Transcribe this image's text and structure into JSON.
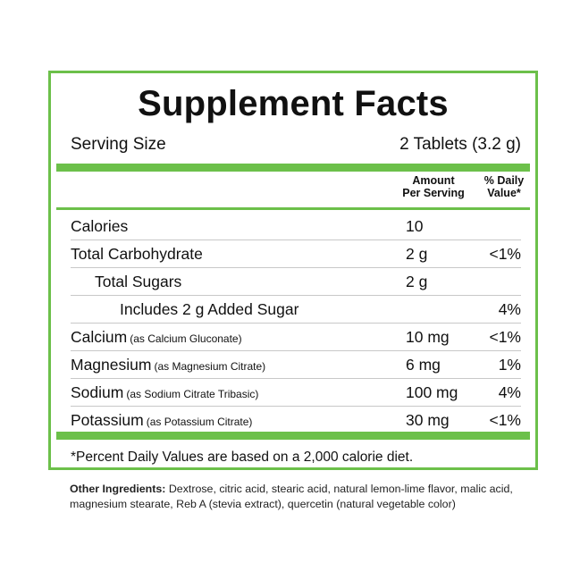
{
  "panel": {
    "title": "Supplement Facts",
    "serving_label": "Serving Size",
    "serving_value": "2 Tablets (3.2 g)",
    "header": {
      "amount_line1": "Amount",
      "amount_line2": "Per Serving",
      "dv_line1": "% Daily",
      "dv_line2": "Value*"
    },
    "rows": [
      {
        "name": "Calories",
        "note": "",
        "amount": "10",
        "dv": ""
      },
      {
        "name": "Total Carbohydrate",
        "note": "",
        "amount": "2 g",
        "dv": "<1%"
      },
      {
        "name": "Total Sugars",
        "note": "",
        "amount": "2 g",
        "dv": ""
      },
      {
        "name": "Includes 2 g Added Sugar",
        "note": "",
        "amount": "",
        "dv": "4%"
      },
      {
        "name": "Calcium",
        "note": "(as Calcium Gluconate)",
        "amount": "10 mg",
        "dv": "<1%"
      },
      {
        "name": "Magnesium",
        "note": "(as Magnesium Citrate)",
        "amount": "6 mg",
        "dv": "1%"
      },
      {
        "name": "Sodium",
        "note": "(as Sodium Citrate Tribasic)",
        "amount": "100 mg",
        "dv": "4%"
      },
      {
        "name": "Potassium",
        "note": "(as Potassium Citrate)",
        "amount": "30 mg",
        "dv": "<1%"
      }
    ],
    "footnote": "*Percent Daily Values are based on a 2,000 calorie diet."
  },
  "ingredients": {
    "label": "Other Ingredients:",
    "text": "Dextrose, citric acid, stearic acid, natural lemon-lime flavor, malic acid, magnesium stearate, Reb A (stevia extract), quercetin (natural vegetable color)"
  },
  "colors": {
    "accent": "#6cc04a",
    "text": "#111111"
  }
}
